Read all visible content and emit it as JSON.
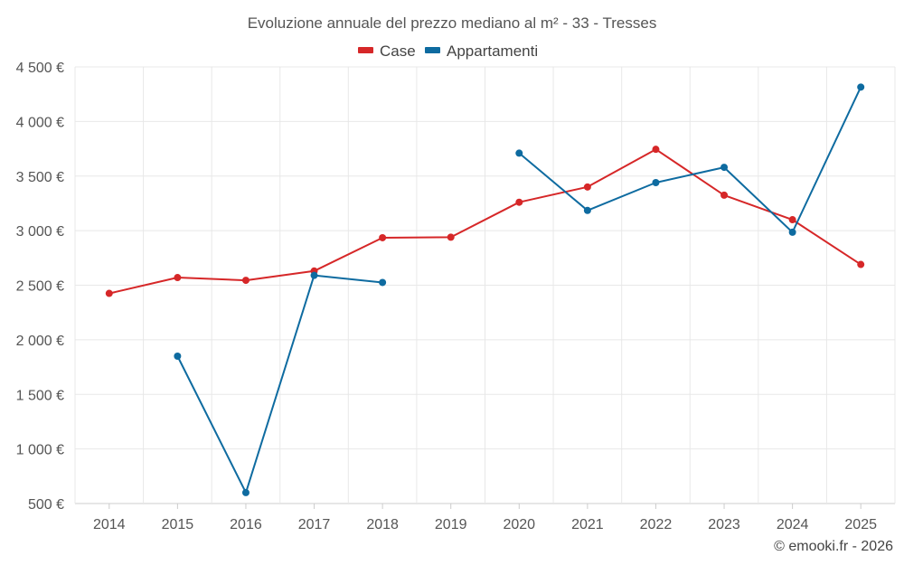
{
  "chart_data": {
    "type": "line",
    "title": "Evoluzione annuale del prezzo mediano al m² - 33 - Tresses",
    "xlabel": "",
    "ylabel": "",
    "categories": [
      "2014",
      "2015",
      "2016",
      "2017",
      "2018",
      "2019",
      "2020",
      "2021",
      "2022",
      "2023",
      "2024",
      "2025"
    ],
    "ylim": [
      500,
      4500
    ],
    "y_ticks": [
      500,
      1000,
      1500,
      2000,
      2500,
      3000,
      3500,
      4000,
      4500
    ],
    "y_tick_labels": [
      "500 €",
      "1 000 €",
      "1 500 €",
      "2 000 €",
      "2 500 €",
      "3 000 €",
      "3 500 €",
      "4 000 €",
      "4 500 €"
    ],
    "grid": true,
    "legend_position": "top-center",
    "series": [
      {
        "name": "Case",
        "color": "#d62728",
        "values": [
          2425,
          2570,
          2545,
          2630,
          2935,
          2940,
          3260,
          3400,
          3745,
          3325,
          3100,
          2690
        ]
      },
      {
        "name": "Appartamenti",
        "color": "#0e6ba0",
        "values": [
          null,
          1850,
          600,
          2590,
          2525,
          null,
          3710,
          3185,
          3440,
          3580,
          2985,
          4315
        ]
      }
    ]
  },
  "credit": "© emooki.fr - 2026"
}
